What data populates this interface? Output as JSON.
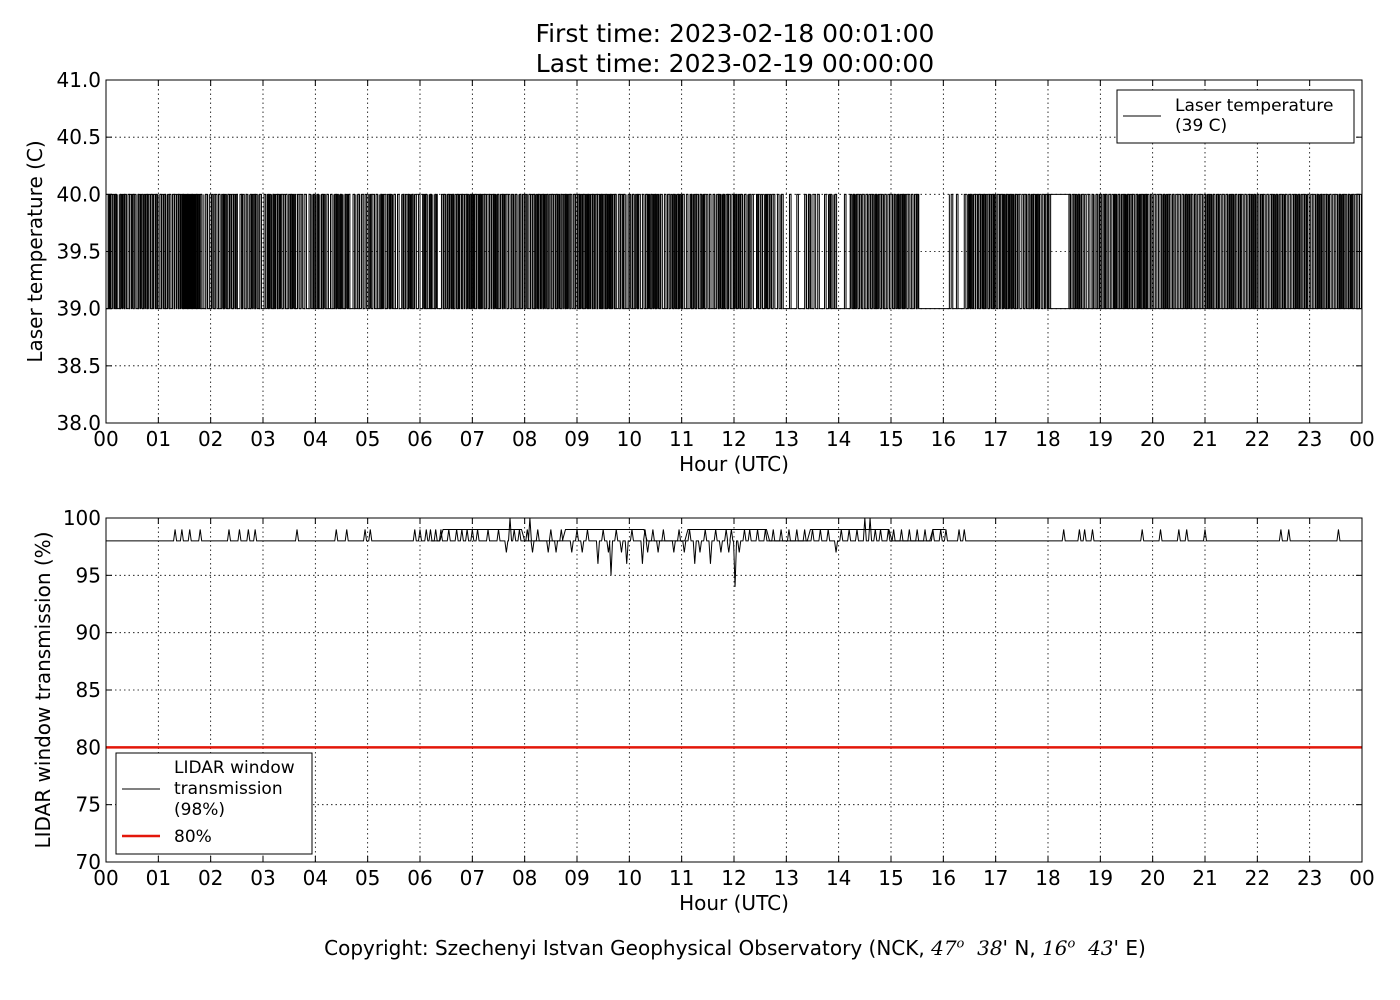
{
  "header": {
    "title_line1": "First time: 2023-02-18 00:01:00",
    "title_line2": "Last time: 2023-02-19 00:00:00"
  },
  "footer": {
    "prefix": "Copyright: Szechenyi Istvan Geophysical Observatory (NCK, ",
    "lat_deg": "47",
    "deg_symbol": "o",
    "lat_min": "38",
    "lat_suffix": "' N, ",
    "lon_deg": "16",
    "lon_min": "43",
    "lon_suffix": "' E)"
  },
  "chart_data": [
    {
      "type": "line",
      "xlabel": "Hour (UTC)",
      "ylabel": "Laser temperature (C)",
      "ylim": [
        38.0,
        41.0
      ],
      "yticks": [
        "38.0",
        "38.5",
        "39.0",
        "39.5",
        "40.0",
        "40.5",
        "41.0"
      ],
      "xlim": [
        0,
        24
      ],
      "xticks": [
        "00",
        "01",
        "02",
        "03",
        "04",
        "05",
        "06",
        "07",
        "08",
        "09",
        "10",
        "11",
        "12",
        "13",
        "14",
        "15",
        "16",
        "17",
        "18",
        "19",
        "20",
        "21",
        "22",
        "23",
        "00"
      ],
      "grid": true,
      "legend": {
        "position": "top-right",
        "entries": [
          {
            "label_line1": "Laser temperature",
            "label_line2": "(39 C)",
            "color": "#000000"
          }
        ]
      },
      "series": [
        {
          "name": "Laser temperature (39 C)",
          "color": "#000000",
          "levels": [
            39.0,
            40.0
          ],
          "note": "signal alternates between 39.0 and 40.0 all day",
          "x_at_40_hours": [
            0.04,
            0.06,
            0.09,
            0.12,
            0.17,
            0.28,
            0.32,
            0.36,
            0.42,
            0.45,
            0.5,
            0.54,
            0.62,
            0.66,
            0.73,
            0.76,
            0.81,
            0.86,
            0.91,
            0.95,
            1.03,
            1.07,
            1.11,
            1.18,
            1.21,
            1.27,
            1.31,
            1.35,
            1.39,
            1.43,
            1.47,
            1.52,
            1.61,
            1.69,
            1.58,
            1.65,
            1.55,
            1.51,
            1.64,
            1.47,
            1.58,
            1.64,
            1.71,
            1.66,
            1.77,
            1.52,
            1.66,
            1.71,
            1.48,
            1.69,
            1.53,
            1.61,
            1.67,
            1.75,
            1.59,
            1.55,
            1.64,
            1.77,
            1.58,
            1.69,
            1.6,
            1.52,
            1.54,
            1.75,
            1.46,
            1.65,
            1.47,
            1.48,
            1.59,
            1.48,
            1.66,
            1.49,
            1.8,
            1.91,
            2.02,
            2.09,
            2.15,
            2.21,
            2.27,
            2.33,
            2.37,
            2.44,
            2.48,
            2.56,
            2.61,
            2.68,
            2.77,
            2.81,
            2.86,
            2.94,
            3.02,
            3.08,
            3.12,
            3.19,
            3.24,
            3.28,
            3.33,
            3.39,
            3.43,
            3.49,
            3.53,
            3.57,
            3.66,
            3.73,
            3.8,
            3.88,
            3.96,
            4.03,
            4.12,
            4.16,
            4.22,
            4.29,
            4.37,
            4.41,
            4.48,
            4.58,
            4.63,
            4.72,
            4.81,
            4.88,
            4.95,
            5.04,
            5.1,
            5.16,
            5.25,
            5.3,
            5.38,
            5.43,
            5.5,
            5.57,
            5.66,
            5.72,
            5.78,
            5.84,
            5.9,
            5.97,
            6.05,
            6.1,
            6.19,
            6.3,
            6.41,
            6.46,
            6.52,
            6.57,
            6.61,
            6.67,
            6.71,
            6.76,
            6.81,
            6.86,
            6.9,
            6.96,
            7.0,
            7.05,
            7.09,
            7.14,
            7.19,
            7.23,
            7.27,
            7.33,
            7.37,
            7.42,
            7.48,
            7.54,
            7.59,
            7.63,
            7.69,
            7.76,
            7.82,
            7.9,
            7.96,
            8.02,
            8.08,
            8.12,
            8.16,
            8.22,
            8.27,
            8.32,
            8.37,
            8.41,
            8.47,
            8.51,
            8.55,
            8.6,
            8.64,
            8.7,
            8.74,
            8.78,
            8.83,
            8.87,
            8.93,
            8.98,
            9.02,
            9.07,
            9.12,
            9.17,
            9.21,
            9.26,
            9.3,
            9.35,
            9.4,
            9.45,
            9.5,
            9.55,
            9.59,
            9.63,
            9.68,
            9.72,
            9.79,
            9.84,
            9.89,
            10.0,
            10.06,
            10.12,
            10.18,
            10.25,
            10.31,
            10.36,
            10.42,
            10.47,
            10.53,
            10.6,
            10.67,
            10.73,
            10.79,
            10.85,
            10.91,
            10.96,
            11.02,
            11.09,
            11.16,
            11.23,
            11.29,
            11.35,
            11.41,
            11.47,
            11.53,
            11.6,
            11.67,
            11.72,
            11.79,
            11.85,
            11.9,
            11.96,
            12.01,
            12.08,
            12.13,
            12.2,
            12.28,
            12.34,
            12.43,
            12.51,
            12.6,
            12.68,
            12.75,
            12.83,
            12.91,
            13.06,
            13.2,
            13.35,
            13.43,
            13.53,
            13.6,
            13.73,
            13.82,
            13.93,
            14.11,
            14.22,
            14.28,
            14.34,
            14.4,
            14.46,
            14.52,
            14.58,
            14.64,
            14.7,
            14.76,
            14.82,
            14.88,
            14.94,
            15.0,
            15.06,
            15.12,
            15.18,
            15.22,
            15.27,
            15.33,
            15.39,
            15.45,
            15.5,
            16.15,
            16.25,
            16.4,
            16.48,
            16.52,
            16.58,
            16.62,
            16.67,
            16.72,
            16.77,
            16.82,
            16.88,
            16.93,
            16.98,
            17.04,
            17.09,
            17.15,
            17.21,
            17.26,
            17.32,
            17.38,
            17.43,
            17.5,
            17.56,
            17.62,
            17.68,
            17.73,
            17.78,
            17.84,
            17.9,
            17.95,
            18.02,
            18.4,
            18.46,
            18.52,
            18.58,
            18.64,
            18.7,
            18.77,
            18.84,
            18.92,
            18.98,
            19.05,
            19.1,
            19.16,
            19.22,
            19.28,
            19.34,
            19.4,
            19.46,
            19.52,
            19.57,
            19.62,
            19.68,
            19.74,
            19.8,
            19.85,
            19.9,
            19.96,
            20.02,
            20.08,
            20.14,
            20.2,
            20.26,
            20.32,
            20.38,
            20.44,
            20.5,
            20.56,
            20.62,
            20.68,
            20.74,
            20.8,
            20.86,
            20.92,
            20.98,
            21.04,
            21.1,
            21.16,
            21.22,
            21.28,
            21.34,
            21.4,
            21.46,
            21.52,
            21.58,
            21.64,
            21.7,
            21.76,
            21.82,
            21.88,
            21.94,
            22.0,
            22.06,
            22.12,
            22.18,
            22.24,
            22.3,
            22.36,
            22.42,
            22.48,
            22.54,
            22.6,
            22.66,
            22.72,
            22.78,
            22.84,
            22.9,
            22.96,
            23.02,
            23.08,
            23.14,
            23.2,
            23.26,
            23.32,
            23.38,
            23.44,
            23.5,
            23.56,
            23.62,
            23.68,
            23.74,
            23.8,
            23.86,
            23.92
          ]
        }
      ]
    },
    {
      "type": "line",
      "xlabel": "Hour (UTC)",
      "ylabel": "LIDAR window transmission (%)",
      "ylim": [
        70,
        100
      ],
      "yticks": [
        "70",
        "75",
        "80",
        "85",
        "90",
        "95",
        "100"
      ],
      "xlim": [
        0,
        24
      ],
      "xticks": [
        "00",
        "01",
        "02",
        "03",
        "04",
        "05",
        "06",
        "07",
        "08",
        "09",
        "10",
        "11",
        "12",
        "13",
        "14",
        "15",
        "16",
        "17",
        "18",
        "19",
        "20",
        "21",
        "22",
        "23",
        "00"
      ],
      "grid": true,
      "legend": {
        "position": "lower-left",
        "entries": [
          {
            "label_line1": "LIDAR window",
            "label_line2": "transmission",
            "label_line3": "(98%)",
            "color": "#000000"
          },
          {
            "label_line1": "80%",
            "color": "#e3170a"
          }
        ]
      },
      "series": [
        {
          "name": "LIDAR window transmission (98%)",
          "color": "#000000",
          "baseline": 98,
          "spikes": [
            [
              1.32,
              99
            ],
            [
              1.45,
              99
            ],
            [
              1.6,
              99
            ],
            [
              1.8,
              99
            ],
            [
              2.35,
              99
            ],
            [
              2.55,
              99
            ],
            [
              2.72,
              99
            ],
            [
              2.85,
              99
            ],
            [
              3.65,
              99
            ],
            [
              4.4,
              99
            ],
            [
              4.6,
              99
            ],
            [
              4.95,
              99
            ],
            [
              5.05,
              99
            ],
            [
              5.9,
              99
            ],
            [
              6.0,
              99
            ],
            [
              6.12,
              99
            ],
            [
              6.2,
              99
            ],
            [
              6.3,
              99
            ],
            [
              6.4,
              99
            ],
            [
              6.55,
              99
            ],
            [
              6.7,
              99
            ],
            [
              6.8,
              99
            ],
            [
              6.9,
              99
            ],
            [
              7.0,
              99
            ],
            [
              7.1,
              99
            ],
            [
              7.3,
              99
            ],
            [
              7.5,
              99
            ],
            [
              7.65,
              97
            ],
            [
              7.72,
              100
            ],
            [
              7.8,
              99
            ],
            [
              7.9,
              99
            ],
            [
              8.05,
              99
            ],
            [
              8.1,
              100
            ],
            [
              8.15,
              97
            ],
            [
              8.25,
              99
            ],
            [
              8.35,
              98
            ],
            [
              8.45,
              97
            ],
            [
              8.5,
              99
            ],
            [
              8.6,
              97
            ],
            [
              8.7,
              99
            ],
            [
              8.8,
              98
            ],
            [
              8.9,
              97
            ],
            [
              9.0,
              99
            ],
            [
              9.1,
              97
            ],
            [
              9.2,
              99
            ],
            [
              9.3,
              98
            ],
            [
              9.4,
              96
            ],
            [
              9.5,
              99
            ],
            [
              9.6,
              97
            ],
            [
              9.65,
              95
            ],
            [
              9.75,
              99
            ],
            [
              9.85,
              97
            ],
            [
              9.95,
              96
            ],
            [
              10.05,
              99
            ],
            [
              10.15,
              98
            ],
            [
              10.25,
              96
            ],
            [
              10.3,
              99
            ],
            [
              10.35,
              97
            ],
            [
              10.45,
              99
            ],
            [
              10.55,
              97
            ],
            [
              10.65,
              99
            ],
            [
              10.75,
              98
            ],
            [
              10.85,
              97
            ],
            [
              10.95,
              99
            ],
            [
              11.05,
              97
            ],
            [
              11.15,
              99
            ],
            [
              11.25,
              96
            ],
            [
              11.35,
              97
            ],
            [
              11.45,
              99
            ],
            [
              11.55,
              96
            ],
            [
              11.65,
              99
            ],
            [
              11.75,
              97
            ],
            [
              11.85,
              99
            ],
            [
              11.9,
              97
            ],
            [
              11.95,
              99
            ],
            [
              12.02,
              94
            ],
            [
              12.1,
              97
            ],
            [
              12.2,
              99
            ],
            [
              12.3,
              99
            ],
            [
              12.45,
              99
            ],
            [
              12.6,
              99
            ],
            [
              12.75,
              99
            ],
            [
              12.9,
              99
            ],
            [
              13.05,
              99
            ],
            [
              13.2,
              99
            ],
            [
              13.35,
              99
            ],
            [
              13.5,
              99
            ],
            [
              13.65,
              99
            ],
            [
              13.8,
              99
            ],
            [
              13.95,
              97
            ],
            [
              14.05,
              99
            ],
            [
              14.2,
              99
            ],
            [
              14.35,
              99
            ],
            [
              14.5,
              100
            ],
            [
              14.6,
              100
            ],
            [
              14.7,
              99
            ],
            [
              14.8,
              99
            ],
            [
              14.95,
              99
            ],
            [
              15.05,
              99
            ],
            [
              15.2,
              99
            ],
            [
              15.35,
              99
            ],
            [
              15.5,
              99
            ],
            [
              15.65,
              99
            ],
            [
              15.8,
              99
            ],
            [
              15.95,
              99
            ],
            [
              16.05,
              99
            ],
            [
              16.3,
              99
            ],
            [
              16.4,
              99
            ],
            [
              18.3,
              99
            ],
            [
              18.6,
              99
            ],
            [
              18.7,
              99
            ],
            [
              18.85,
              99
            ],
            [
              19.8,
              99
            ],
            [
              20.15,
              99
            ],
            [
              20.5,
              99
            ],
            [
              20.65,
              99
            ],
            [
              21.0,
              99
            ],
            [
              22.45,
              99
            ],
            [
              22.6,
              99
            ],
            [
              23.55,
              99
            ]
          ]
        },
        {
          "name": "80%",
          "color": "#e3170a",
          "values": [
            80,
            80
          ]
        }
      ]
    }
  ]
}
